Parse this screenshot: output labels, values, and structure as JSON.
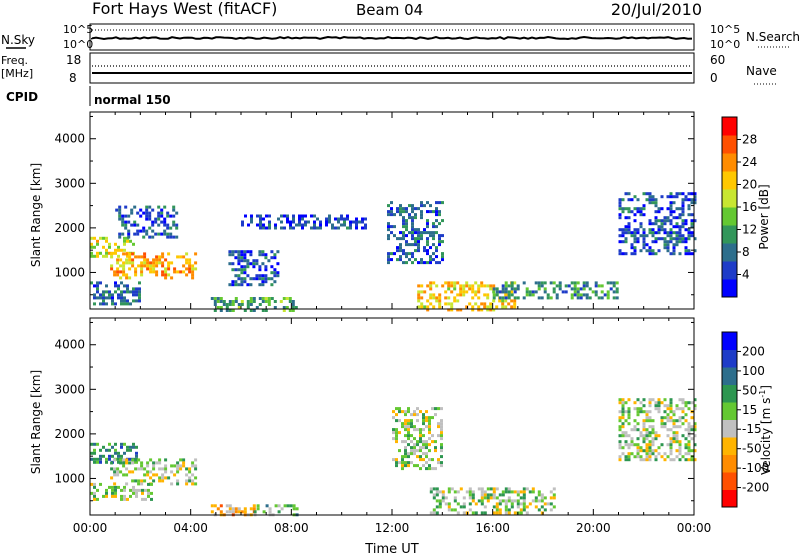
{
  "header": {
    "station": "Fort Hays West (fitACF)",
    "beam": "Beam 04",
    "date": "20/Jul/2010"
  },
  "top_panels": {
    "nsky_label": "N.Sky",
    "nsky_ticks": [
      "10^5",
      "10^0"
    ],
    "nsearch_label": "N.Search",
    "nsearch_ticks": [
      "10^5",
      "10^0"
    ],
    "freq_label": "Freq.",
    "freq_unit": "[MHz]",
    "freq_ticks": [
      "18",
      "8"
    ],
    "nave_label": "Nave",
    "nave_ticks": [
      "60",
      "0"
    ],
    "cpid_label": "CPID",
    "cpid_value": "normal 150"
  },
  "chart_data": [
    {
      "type": "heatmap",
      "name": "power",
      "ylabel": "Slant Range [km]",
      "ylim": [
        180,
        4600
      ],
      "yticks": [
        1000,
        2000,
        3000,
        4000
      ],
      "x_ticks": [
        "00:00",
        "04:00",
        "08:00",
        "12:00",
        "16:00",
        "20:00",
        "00:00"
      ],
      "xlim_hours": [
        0,
        24
      ],
      "colorbar": {
        "label": "Power [dB]",
        "ticks": [
          "4",
          "8",
          "12",
          "16",
          "20",
          "24",
          "28"
        ],
        "tick_values": [
          4,
          8,
          12,
          16,
          20,
          24,
          28
        ],
        "range": [
          0,
          32
        ],
        "colors": [
          "#0000ff",
          "#1e3cc8",
          "#2d6e8c",
          "#32965a",
          "#64c832",
          "#c8e632",
          "#ffc800",
          "#ff8c00",
          "#ff5000",
          "#ff0000"
        ]
      },
      "regions": [
        {
          "t": [
            0.0,
            1.8
          ],
          "r": [
            1350,
            1800
          ],
          "v": 18
        },
        {
          "t": [
            0.8,
            4.2
          ],
          "r": [
            900,
            1450
          ],
          "v": 22
        },
        {
          "t": [
            0.0,
            2.0
          ],
          "r": [
            300,
            800
          ],
          "v": 8
        },
        {
          "t": [
            1.0,
            3.5
          ],
          "r": [
            1800,
            2500
          ],
          "v": 6
        },
        {
          "t": [
            4.8,
            8.2
          ],
          "r": [
            180,
            450
          ],
          "v": 12
        },
        {
          "t": [
            5.5,
            7.5
          ],
          "r": [
            700,
            1500
          ],
          "v": 6
        },
        {
          "t": [
            11.8,
            14.0
          ],
          "r": [
            1200,
            2600
          ],
          "v": 7
        },
        {
          "t": [
            13.0,
            17.0
          ],
          "r": [
            180,
            800
          ],
          "v": 20
        },
        {
          "t": [
            16.0,
            21.0
          ],
          "r": [
            450,
            800
          ],
          "v": 10
        },
        {
          "t": [
            21.0,
            24.0
          ],
          "r": [
            1400,
            2800
          ],
          "v": 6
        },
        {
          "t": [
            6.0,
            11.0
          ],
          "r": [
            2000,
            2300
          ],
          "v": 5
        }
      ]
    },
    {
      "type": "heatmap",
      "name": "velocity",
      "ylabel": "Slant Range [km]",
      "ylim": [
        180,
        4600
      ],
      "yticks": [
        1000,
        2000,
        3000,
        4000
      ],
      "x_ticks": [
        "00:00",
        "04:00",
        "08:00",
        "12:00",
        "16:00",
        "20:00",
        "00:00"
      ],
      "xlim_hours": [
        0,
        24
      ],
      "xlabel": "Time UT",
      "colorbar": {
        "label": "Velocity [m s",
        "label_sup": "-1",
        "label_end": "]",
        "ticks": [
          "200",
          "100",
          "50",
          "15",
          "-15",
          "-50",
          "-100",
          "-200"
        ],
        "tick_values": [
          200,
          100,
          50,
          15,
          -15,
          -50,
          -100,
          -200
        ],
        "range": [
          -250,
          250
        ],
        "colors": [
          "#ff0000",
          "#ff5000",
          "#ff8c00",
          "#ffb400",
          "#c0c0c0",
          "#64c832",
          "#2d9650",
          "#2d6e8c",
          "#1e3cc8",
          "#0000ff"
        ]
      },
      "regions": [
        {
          "t": [
            0.0,
            1.8
          ],
          "r": [
            1350,
            1800
          ],
          "v": 100
        },
        {
          "t": [
            0.8,
            4.2
          ],
          "r": [
            900,
            1450
          ],
          "v": 0
        },
        {
          "t": [
            0.0,
            2.5
          ],
          "r": [
            500,
            900
          ],
          "v": 0
        },
        {
          "t": [
            4.8,
            6.5
          ],
          "r": [
            180,
            420
          ],
          "v": -80
        },
        {
          "t": [
            6.5,
            8.2
          ],
          "r": [
            180,
            420
          ],
          "v": 40
        },
        {
          "t": [
            12.0,
            14.0
          ],
          "r": [
            1200,
            2600
          ],
          "v": 0
        },
        {
          "t": [
            13.5,
            18.5
          ],
          "r": [
            200,
            800
          ],
          "v": 0
        },
        {
          "t": [
            21.0,
            24.0
          ],
          "r": [
            1400,
            2800
          ],
          "v": 0
        }
      ]
    }
  ]
}
